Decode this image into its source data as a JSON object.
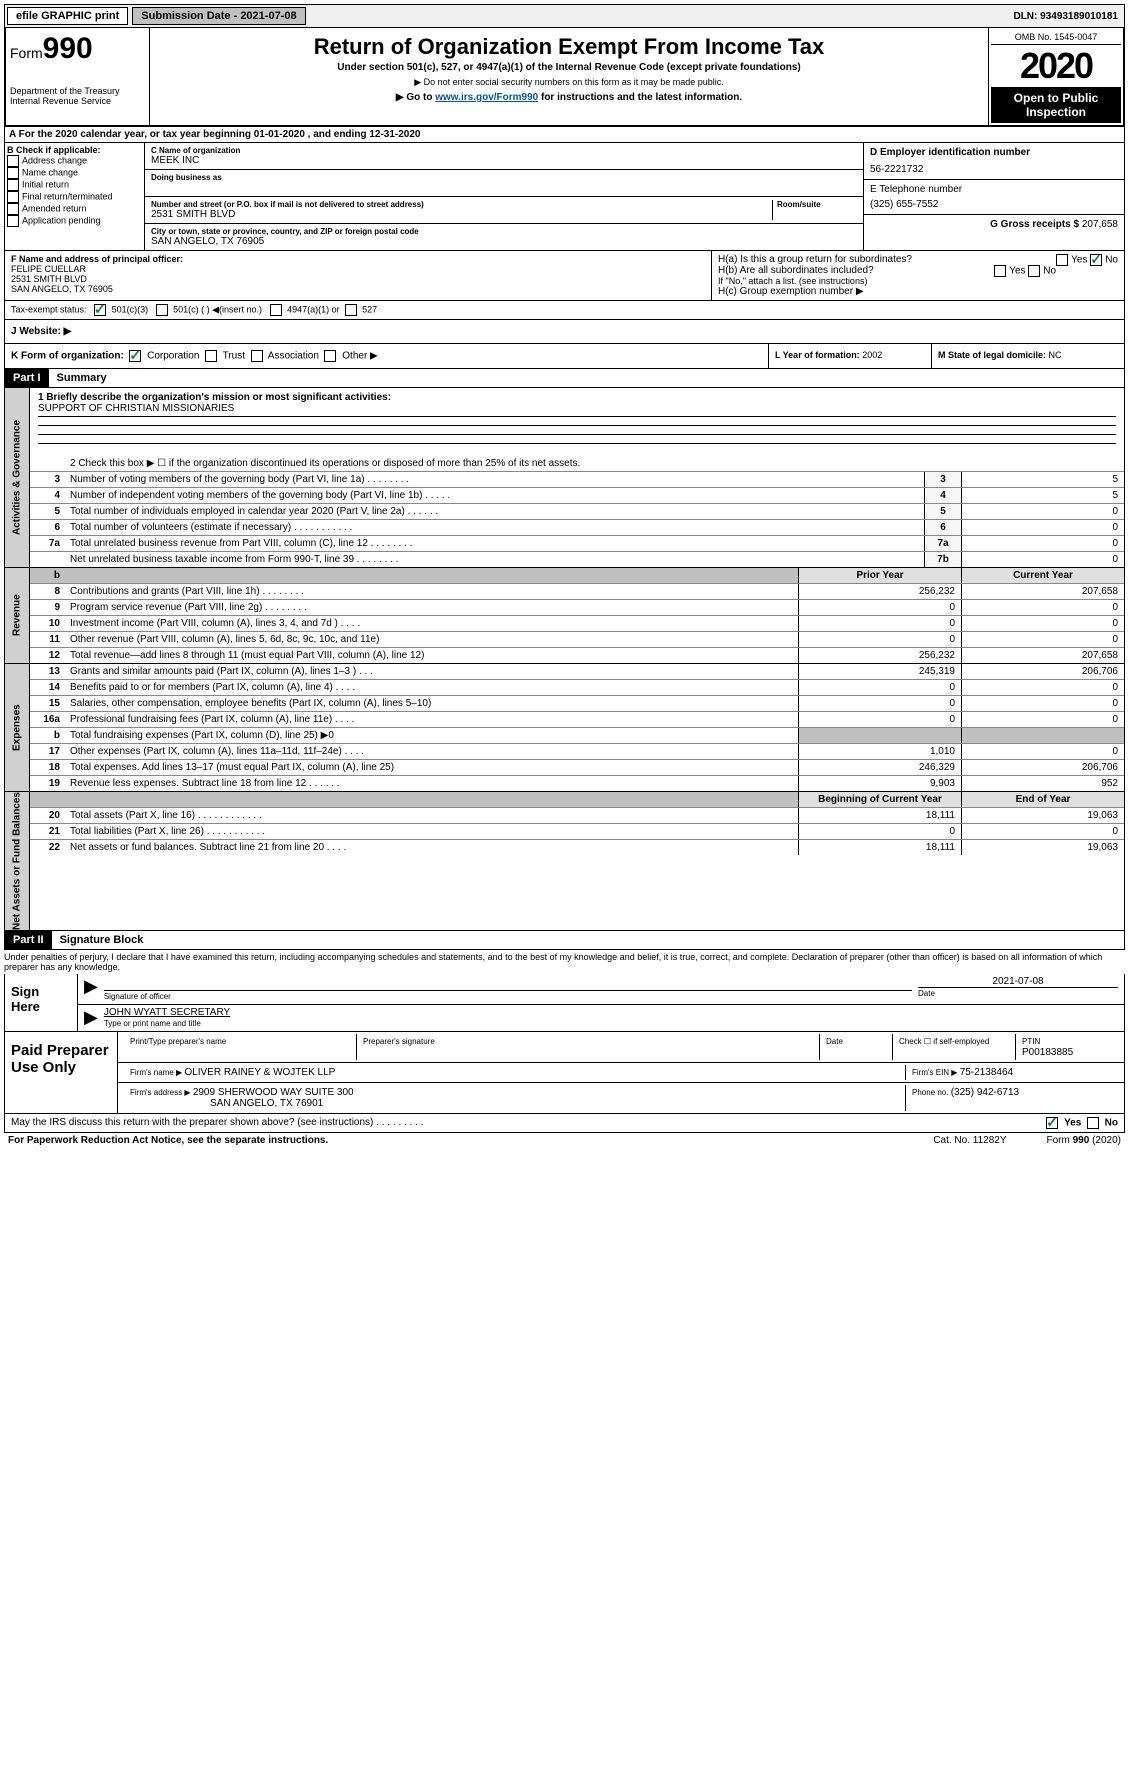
{
  "topbar": {
    "efile": "efile GRAPHIC print",
    "subdate": "Submission Date - 2021-07-08",
    "dln": "DLN: 93493189010181"
  },
  "header": {
    "form_label": "Form",
    "form_num": "990",
    "dept": "Department of the Treasury\nInternal Revenue Service",
    "title": "Return of Organization Exempt From Income Tax",
    "sub1": "Under section 501(c), 527, or 4947(a)(1) of the Internal Revenue Code (except private foundations)",
    "sub2": "▶ Do not enter social security numbers on this form as it may be made public.",
    "sub3_pre": "▶ Go to ",
    "sub3_link": "www.irs.gov/Form990",
    "sub3_post": " for instructions and the latest information.",
    "omb": "OMB No. 1545-0047",
    "year": "2020",
    "open": "Open to Public Inspection"
  },
  "period": "A For the 2020 calendar year, or tax year beginning 01-01-2020    , and ending 12-31-2020",
  "box_b": {
    "title": "B Check if applicable:",
    "opts": [
      "Address change",
      "Name change",
      "Initial return",
      "Final return/terminated",
      "Amended return",
      "Application pending"
    ]
  },
  "box_c": {
    "name_label": "C Name of organization",
    "name": "MEEK INC",
    "dba_label": "Doing business as",
    "addr_label": "Number and street (or P.O. box if mail is not delivered to street address)",
    "room_label": "Room/suite",
    "addr": "2531 SMITH BLVD",
    "city_label": "City or town, state or province, country, and ZIP or foreign postal code",
    "city": "SAN ANGELO, TX  76905"
  },
  "box_d": {
    "label": "D Employer identification number",
    "val": "56-2221732"
  },
  "box_e": {
    "label": "E Telephone number",
    "val": "(325) 655-7552"
  },
  "box_g": {
    "label": "G Gross receipts $ ",
    "val": "207,658"
  },
  "box_f": {
    "label": "F  Name and address of principal officer:",
    "val": "FELIPE CUELLAR\n2531 SMITH BLVD\nSAN ANGELO, TX  76905"
  },
  "box_h": {
    "a": "H(a)  Is this a group return for subordinates?",
    "b": "H(b)  Are all subordinates included?",
    "note": "If \"No,\" attach a list. (see instructions)",
    "c": "H(c)  Group exemption number ▶",
    "yes": "Yes",
    "no": "No"
  },
  "box_i": {
    "label": "Tax-exempt status:",
    "o1": "501(c)(3)",
    "o2": "501(c) (  ) ◀(insert no.)",
    "o3": "4947(a)(1) or",
    "o4": "527"
  },
  "box_j": {
    "label": "J   Website: ▶"
  },
  "box_k": {
    "label": "K Form of organization:",
    "opts": [
      "Corporation",
      "Trust",
      "Association",
      "Other ▶"
    ]
  },
  "box_l": {
    "label": "L Year of formation: ",
    "val": "2002"
  },
  "box_m": {
    "label": "M State of legal domicile: ",
    "val": "NC"
  },
  "parts": {
    "p1": "Part I",
    "p1_title": "Summary",
    "p2": "Part II",
    "p2_title": "Signature Block"
  },
  "sections": {
    "gov": "Activities & Governance",
    "rev": "Revenue",
    "exp": "Expenses",
    "net": "Net Assets or Fund Balances"
  },
  "q1": {
    "label": "1  Briefly describe the organization's mission or most significant activities:",
    "val": "SUPPORT OF CHRISTIAN MISSIONARIES"
  },
  "q2": "2   Check this box ▶ ☐  if the organization discontinued its operations or disposed of more than 25% of its net assets.",
  "rows_gov": [
    {
      "n": "3",
      "d": "Number of voting members of the governing body (Part VI, line 1a)  .    .    .    .    .    .    .    .",
      "b": "3",
      "v": "5"
    },
    {
      "n": "4",
      "d": "Number of independent voting members of the governing body (Part VI, line 1b)  .    .    .    .    .",
      "b": "4",
      "v": "5"
    },
    {
      "n": "5",
      "d": "Total number of individuals employed in calendar year 2020 (Part V, line 2a)  .    .    .    .    .    .",
      "b": "5",
      "v": "0"
    },
    {
      "n": "6",
      "d": "Total number of volunteers (estimate if necessary)  .    .    .    .    .    .    .    .    .    .    .",
      "b": "6",
      "v": "0"
    },
    {
      "n": "7a",
      "d": "Total unrelated business revenue from Part VIII, column (C), line 12  .    .    .    .    .    .    .    .",
      "b": "7a",
      "v": "0"
    },
    {
      "n": "",
      "d": "Net unrelated business taxable income from Form 990-T, line 39  .    .    .    .    .    .    .    .",
      "b": "7b",
      "v": "0"
    }
  ],
  "col_headers": {
    "prior": "Prior Year",
    "current": "Current Year",
    "boc": "Beginning of Current Year",
    "eoy": "End of Year"
  },
  "rows_rev": [
    {
      "n": "8",
      "d": "Contributions and grants (Part VIII, line 1h)  .    .    .    .    .    .    .    .",
      "p": "256,232",
      "c": "207,658"
    },
    {
      "n": "9",
      "d": "Program service revenue (Part VIII, line 2g)  .    .    .    .    .    .    .    .",
      "p": "0",
      "c": "0"
    },
    {
      "n": "10",
      "d": "Investment income (Part VIII, column (A), lines 3, 4, and 7d )  .    .    .    .",
      "p": "0",
      "c": "0"
    },
    {
      "n": "11",
      "d": "Other revenue (Part VIII, column (A), lines 5, 6d, 8c, 9c, 10c, and 11e)",
      "p": "0",
      "c": "0"
    },
    {
      "n": "12",
      "d": "Total revenue—add lines 8 through 11 (must equal Part VIII, column (A), line 12)",
      "p": "256,232",
      "c": "207,658"
    }
  ],
  "rows_exp": [
    {
      "n": "13",
      "d": "Grants and similar amounts paid (Part IX, column (A), lines 1–3 )  .    .    .",
      "p": "245,319",
      "c": "206,706"
    },
    {
      "n": "14",
      "d": "Benefits paid to or for members (Part IX, column (A), line 4)  .    .    .    .",
      "p": "0",
      "c": "0"
    },
    {
      "n": "15",
      "d": "Salaries, other compensation, employee benefits (Part IX, column (A), lines 5–10)",
      "p": "0",
      "c": "0"
    },
    {
      "n": "16a",
      "d": "Professional fundraising fees (Part IX, column (A), line 11e)  .    .    .    .",
      "p": "0",
      "c": "0"
    },
    {
      "n": "b",
      "d": "Total fundraising expenses (Part IX, column (D), line 25) ▶0",
      "p": "",
      "c": "",
      "shaded": true
    },
    {
      "n": "17",
      "d": "Other expenses (Part IX, column (A), lines 11a–11d, 11f–24e)  .    .    .    .",
      "p": "1,010",
      "c": "0"
    },
    {
      "n": "18",
      "d": "Total expenses. Add lines 13–17 (must equal Part IX, column (A), line 25)",
      "p": "246,329",
      "c": "206,706"
    },
    {
      "n": "19",
      "d": "Revenue less expenses. Subtract line 18 from line 12  .    .    .    .    .    .",
      "p": "9,903",
      "c": "952"
    }
  ],
  "rows_net": [
    {
      "n": "20",
      "d": "Total assets (Part X, line 16)  .    .    .    .    .    .    .    .    .    .    .    .",
      "p": "18,111",
      "c": "19,063"
    },
    {
      "n": "21",
      "d": "Total liabilities (Part X, line 26)  .    .    .    .    .    .    .    .    .    .    .",
      "p": "0",
      "c": "0"
    },
    {
      "n": "22",
      "d": "Net assets or fund balances. Subtract line 21 from line 20  .    .    .    .",
      "p": "18,111",
      "c": "19,063"
    }
  ],
  "penalties": "Under penalties of perjury, I declare that I have examined this return, including accompanying schedules and statements, and to the best of my knowledge and belief, it is true, correct, and complete. Declaration of preparer (other than officer) is based on all information of which preparer has any knowledge.",
  "sign": {
    "here": "Sign Here",
    "sig_label": "Signature of officer",
    "date": "2021-07-08",
    "date_label": "Date",
    "name": "JOHN WYATT SECRETARY",
    "name_label": "Type or print name and title"
  },
  "paid": {
    "title": "Paid Preparer Use Only",
    "h1": "Print/Type preparer's name",
    "h2": "Preparer's signature",
    "h3": "Date",
    "h4_a": "Check ☐ if self-employed",
    "h5": "PTIN",
    "ptin": "P00183885",
    "firm_name_label": "Firm's name     ▶ ",
    "firm_name": "OLIVER RAINEY & WOJTEK LLP",
    "firm_ein_label": "Firm's EIN ▶ ",
    "firm_ein": "75-2138464",
    "firm_addr_label": "Firm's address ▶ ",
    "firm_addr": "2909 SHERWOOD WAY SUITE 300",
    "firm_city": "SAN ANGELO, TX  76901",
    "phone_label": "Phone no. ",
    "phone": "(325) 942-6713"
  },
  "discuss": "May the IRS discuss this return with the preparer shown above? (see instructions)   .    .    .    .    .    .    .    .    .",
  "footer": {
    "left": "For Paperwork Reduction Act Notice, see the separate instructions.",
    "mid": "Cat. No. 11282Y",
    "right": "Form 990 (2020)"
  }
}
